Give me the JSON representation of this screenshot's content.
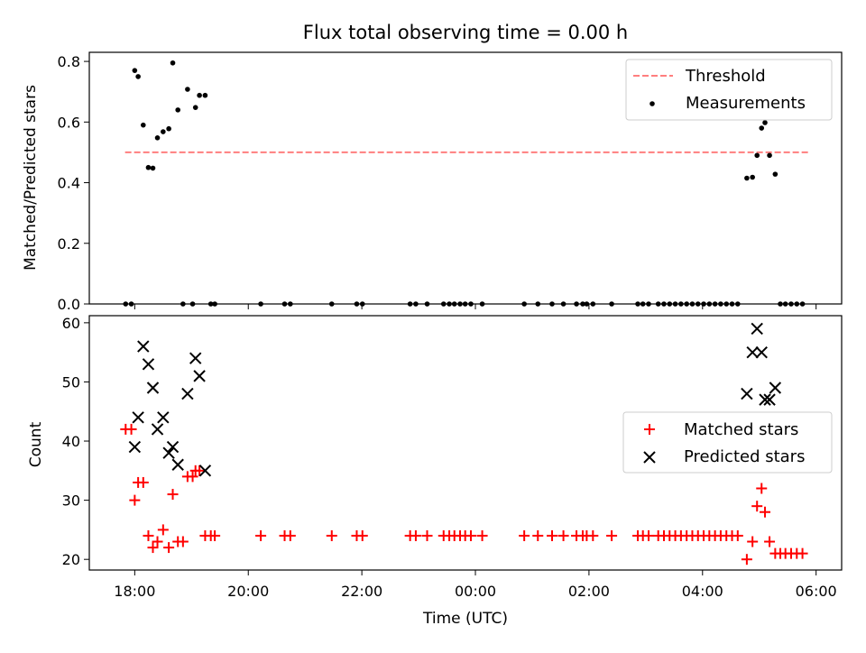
{
  "chart_data": [
    {
      "type": "scatter",
      "title": "Flux total observing time = 0.00 h",
      "ylabel": "Matched/Predicted stars",
      "xlabel": "",
      "x_unit": "hours_since_1800_UTC",
      "xlim": [
        -0.8,
        12.45
      ],
      "ylim": [
        0,
        0.83
      ],
      "yticks": [
        0.0,
        0.2,
        0.4,
        0.6,
        0.8
      ],
      "ytick_labels": [
        "0.0",
        "0.2",
        "0.4",
        "0.6",
        "0.8"
      ],
      "threshold": {
        "name": "Threshold",
        "value": 0.5,
        "x_range": [
          -0.17,
          11.9
        ],
        "color": "#ff7f7f"
      },
      "legend": {
        "position": "top-right",
        "entries": [
          "Threshold",
          "Measurements"
        ]
      },
      "series": [
        {
          "name": "Measurements",
          "color": "#000000",
          "points": [
            [
              -0.16,
              0
            ],
            [
              -0.06,
              0
            ],
            [
              0.0,
              0.77
            ],
            [
              0.06,
              0.75
            ],
            [
              0.15,
              0.59
            ],
            [
              0.24,
              0.45
            ],
            [
              0.32,
              0.448
            ],
            [
              0.4,
              0.548
            ],
            [
              0.5,
              0.568
            ],
            [
              0.6,
              0.578
            ],
            [
              0.67,
              0.795
            ],
            [
              0.76,
              0.64
            ],
            [
              0.85,
              0
            ],
            [
              0.93,
              0.708
            ],
            [
              1.02,
              0
            ],
            [
              1.07,
              0.648
            ],
            [
              1.14,
              0.688
            ],
            [
              1.24,
              0.688
            ],
            [
              1.34,
              0
            ],
            [
              1.41,
              0
            ],
            [
              2.22,
              0
            ],
            [
              2.64,
              0
            ],
            [
              2.74,
              0
            ],
            [
              3.47,
              0
            ],
            [
              3.91,
              0
            ],
            [
              4.01,
              0
            ],
            [
              4.85,
              0
            ],
            [
              4.95,
              0
            ],
            [
              5.15,
              0
            ],
            [
              5.44,
              0
            ],
            [
              5.54,
              0
            ],
            [
              5.63,
              0
            ],
            [
              5.73,
              0
            ],
            [
              5.82,
              0
            ],
            [
              5.92,
              0
            ],
            [
              6.12,
              0
            ],
            [
              6.86,
              0
            ],
            [
              7.1,
              0
            ],
            [
              7.35,
              0
            ],
            [
              7.55,
              0
            ],
            [
              7.78,
              0
            ],
            [
              7.89,
              0
            ],
            [
              7.96,
              0
            ],
            [
              8.07,
              0
            ],
            [
              8.4,
              0
            ],
            [
              8.86,
              0
            ],
            [
              8.95,
              0
            ],
            [
              9.05,
              0
            ],
            [
              9.22,
              0
            ],
            [
              9.32,
              0
            ],
            [
              9.42,
              0
            ],
            [
              9.52,
              0
            ],
            [
              9.62,
              0
            ],
            [
              9.72,
              0
            ],
            [
              9.82,
              0
            ],
            [
              9.92,
              0
            ],
            [
              10.02,
              0
            ],
            [
              10.12,
              0
            ],
            [
              10.22,
              0
            ],
            [
              10.32,
              0
            ],
            [
              10.42,
              0
            ],
            [
              10.52,
              0
            ],
            [
              10.62,
              0
            ],
            [
              10.78,
              0.415
            ],
            [
              10.88,
              0.418
            ],
            [
              10.96,
              0.49
            ],
            [
              11.04,
              0.58
            ],
            [
              11.1,
              0.598
            ],
            [
              11.18,
              0.49
            ],
            [
              11.28,
              0.428
            ],
            [
              11.37,
              0
            ],
            [
              11.46,
              0
            ],
            [
              11.56,
              0
            ],
            [
              11.66,
              0
            ],
            [
              11.76,
              0
            ]
          ]
        }
      ]
    },
    {
      "type": "scatter",
      "title": "",
      "ylabel": "Count",
      "xlabel": "Time (UTC)",
      "x_unit": "hours_since_1800_UTC",
      "xlim": [
        -0.8,
        12.45
      ],
      "ylim": [
        18.2,
        61.2
      ],
      "yticks": [
        20,
        30,
        40,
        50,
        60
      ],
      "ytick_labels": [
        "20",
        "30",
        "40",
        "50",
        "60"
      ],
      "xticks": [
        0,
        2,
        4,
        6,
        8,
        10,
        12
      ],
      "xtick_labels": [
        "18:00",
        "20:00",
        "22:00",
        "00:00",
        "02:00",
        "04:00",
        "06:00"
      ],
      "legend": {
        "position": "center-right",
        "entries": [
          "Matched stars",
          "Predicted stars"
        ]
      },
      "series": [
        {
          "name": "Matched stars",
          "marker": "plus",
          "color": "#ff0000",
          "points": [
            [
              -0.16,
              42
            ],
            [
              -0.06,
              42
            ],
            [
              0.0,
              30
            ],
            [
              0.06,
              33
            ],
            [
              0.15,
              33
            ],
            [
              0.24,
              24
            ],
            [
              0.32,
              22
            ],
            [
              0.4,
              23
            ],
            [
              0.5,
              25
            ],
            [
              0.6,
              22
            ],
            [
              0.67,
              31
            ],
            [
              0.76,
              23
            ],
            [
              0.85,
              23
            ],
            [
              0.93,
              34
            ],
            [
              1.02,
              34
            ],
            [
              1.07,
              35
            ],
            [
              1.14,
              35
            ],
            [
              1.24,
              24
            ],
            [
              1.34,
              24
            ],
            [
              1.41,
              24
            ],
            [
              2.22,
              24
            ],
            [
              2.64,
              24
            ],
            [
              2.74,
              24
            ],
            [
              3.47,
              24
            ],
            [
              3.91,
              24
            ],
            [
              4.01,
              24
            ],
            [
              4.85,
              24
            ],
            [
              4.95,
              24
            ],
            [
              5.15,
              24
            ],
            [
              5.44,
              24
            ],
            [
              5.54,
              24
            ],
            [
              5.63,
              24
            ],
            [
              5.73,
              24
            ],
            [
              5.82,
              24
            ],
            [
              5.92,
              24
            ],
            [
              6.12,
              24
            ],
            [
              6.86,
              24
            ],
            [
              7.1,
              24
            ],
            [
              7.35,
              24
            ],
            [
              7.55,
              24
            ],
            [
              7.78,
              24
            ],
            [
              7.89,
              24
            ],
            [
              7.96,
              24
            ],
            [
              8.07,
              24
            ],
            [
              8.4,
              24
            ],
            [
              8.86,
              24
            ],
            [
              8.95,
              24
            ],
            [
              9.05,
              24
            ],
            [
              9.22,
              24
            ],
            [
              9.32,
              24
            ],
            [
              9.42,
              24
            ],
            [
              9.52,
              24
            ],
            [
              9.62,
              24
            ],
            [
              9.72,
              24
            ],
            [
              9.82,
              24
            ],
            [
              9.92,
              24
            ],
            [
              10.02,
              24
            ],
            [
              10.12,
              24
            ],
            [
              10.22,
              24
            ],
            [
              10.32,
              24
            ],
            [
              10.42,
              24
            ],
            [
              10.52,
              24
            ],
            [
              10.62,
              24
            ],
            [
              10.78,
              20
            ],
            [
              10.88,
              23
            ],
            [
              10.96,
              29
            ],
            [
              11.04,
              32
            ],
            [
              11.1,
              28
            ],
            [
              11.18,
              23
            ],
            [
              11.28,
              21
            ],
            [
              11.37,
              21
            ],
            [
              11.46,
              21
            ],
            [
              11.56,
              21
            ],
            [
              11.66,
              21
            ],
            [
              11.76,
              21
            ]
          ]
        },
        {
          "name": "Predicted stars",
          "marker": "x",
          "color": "#000000",
          "points": [
            [
              0.0,
              39
            ],
            [
              0.06,
              44
            ],
            [
              0.15,
              56
            ],
            [
              0.24,
              53
            ],
            [
              0.32,
              49
            ],
            [
              0.4,
              42
            ],
            [
              0.5,
              44
            ],
            [
              0.6,
              38
            ],
            [
              0.67,
              39
            ],
            [
              0.76,
              36
            ],
            [
              0.93,
              48
            ],
            [
              1.07,
              54
            ],
            [
              1.14,
              51
            ],
            [
              1.24,
              35
            ],
            [
              10.78,
              48
            ],
            [
              10.88,
              55
            ],
            [
              10.96,
              59
            ],
            [
              11.04,
              55
            ],
            [
              11.1,
              47
            ],
            [
              11.18,
              47
            ],
            [
              11.28,
              49
            ]
          ]
        }
      ]
    }
  ]
}
